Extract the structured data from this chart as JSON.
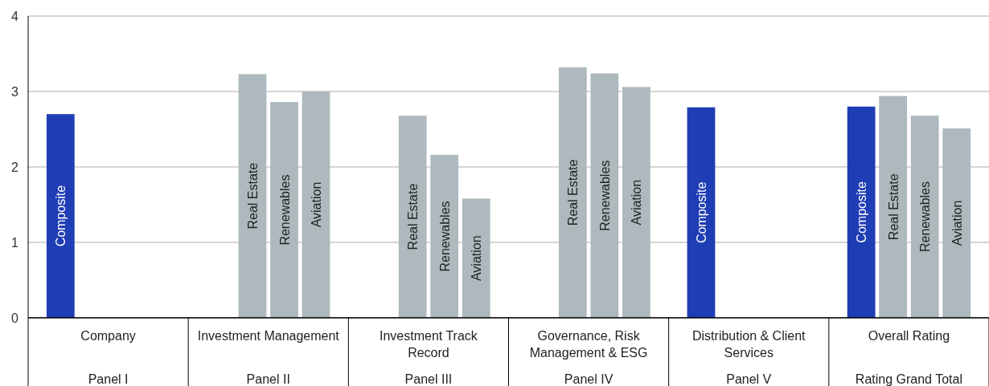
{
  "chart_data": {
    "type": "bar",
    "categories": [
      "Company",
      "Investment Management",
      "Investment Track\nRecord",
      "Governance, Risk\nManagement & ESG",
      "Distribution & Client\nServices",
      "Overall Rating"
    ],
    "series": [
      {
        "name": "Composite",
        "color": "#1f3db5",
        "values": [
          2.7,
          null,
          null,
          null,
          2.79,
          2.8
        ]
      },
      {
        "name": "Real Estate",
        "color": "#adb9bd",
        "values": [
          null,
          3.23,
          2.68,
          3.32,
          null,
          2.94
        ]
      },
      {
        "name": "Renewables",
        "color": "#adb9bd",
        "values": [
          null,
          2.86,
          2.16,
          3.24,
          null,
          2.68
        ]
      },
      {
        "name": "Aviation",
        "color": "#adb9bd",
        "values": [
          null,
          3.0,
          1.58,
          3.06,
          null,
          2.51
        ]
      }
    ],
    "annotations": [
      "Panel I",
      "Panel II",
      "Panel III",
      "Panel IV",
      "Panel V",
      "Rating Grand Total"
    ],
    "ylim": [
      0,
      4
    ],
    "yticks": [
      0,
      1,
      2,
      3,
      4
    ],
    "grid": "y"
  }
}
